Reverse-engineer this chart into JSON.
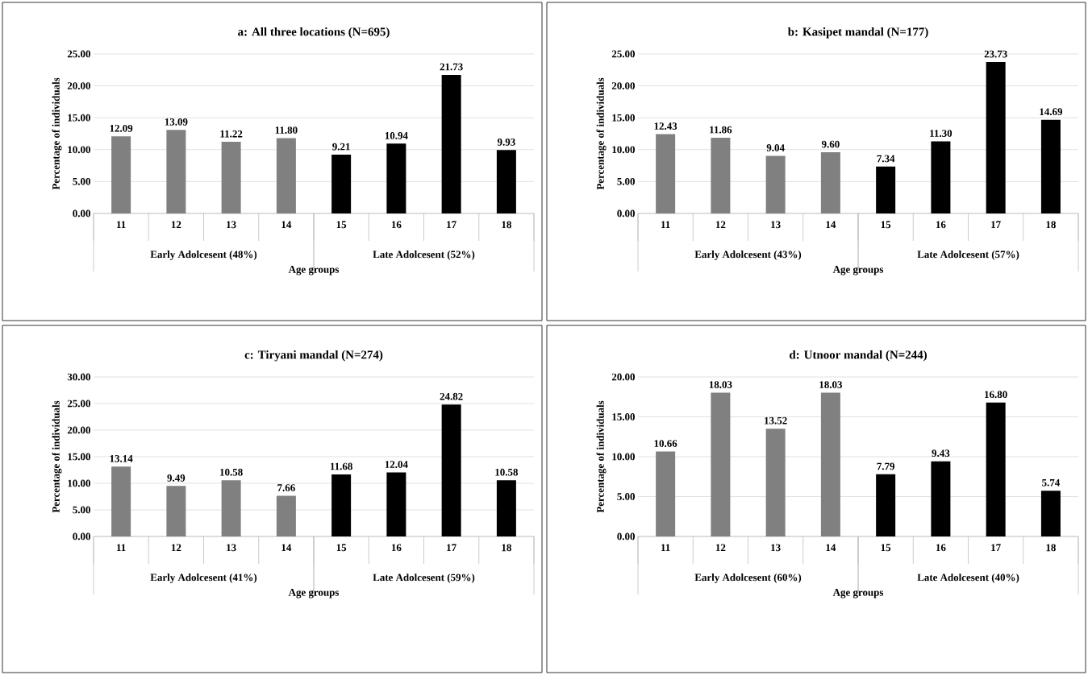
{
  "chart_data": [
    {
      "type": "bar",
      "title": "a: All three locations (N=695)",
      "xlabel": "Age groups",
      "ylabel": "Percentage of individuals",
      "categories": [
        "11",
        "12",
        "13",
        "14",
        "15",
        "16",
        "17",
        "18"
      ],
      "values": [
        12.09,
        13.09,
        11.22,
        11.8,
        9.21,
        10.94,
        21.73,
        9.93
      ],
      "colors": [
        "#808080",
        "#808080",
        "#808080",
        "#808080",
        "#000000",
        "#000000",
        "#000000",
        "#000000"
      ],
      "ylim": [
        0,
        25
      ],
      "yticks": [
        {
          "value": 0,
          "label": "0.00"
        },
        {
          "value": 5,
          "label": "5.00"
        },
        {
          "value": 10,
          "label": "10.00"
        },
        {
          "value": 15,
          "label": "15.00"
        },
        {
          "value": 20,
          "label": "20.00"
        },
        {
          "value": 25,
          "label": "25.00"
        }
      ],
      "value_labels": [
        "12.09",
        "13.09",
        "11.22",
        "11.80",
        "9.21",
        "10.94",
        "21.73",
        "9.93"
      ],
      "grid": "y",
      "data_labels": true,
      "annotations": [
        "Early Adolcesent (48%)",
        "Late Adolcesent (52%)"
      ]
    },
    {
      "type": "bar",
      "title": "b: Kasipet mandal (N=177)",
      "xlabel": "Age groups",
      "ylabel": "Percentage of individuals",
      "categories": [
        "11",
        "12",
        "13",
        "14",
        "15",
        "16",
        "17",
        "18"
      ],
      "values": [
        12.43,
        11.86,
        9.04,
        9.6,
        7.34,
        11.3,
        23.73,
        14.69
      ],
      "colors": [
        "#808080",
        "#808080",
        "#808080",
        "#808080",
        "#000000",
        "#000000",
        "#000000",
        "#000000"
      ],
      "ylim": [
        0,
        25
      ],
      "yticks": [
        {
          "value": 0,
          "label": "0.00"
        },
        {
          "value": 5,
          "label": "5.00"
        },
        {
          "value": 10,
          "label": "10.00"
        },
        {
          "value": 15,
          "label": "15.00"
        },
        {
          "value": 20,
          "label": "20.00"
        },
        {
          "value": 25,
          "label": "25.00"
        }
      ],
      "value_labels": [
        "12.43",
        "11.86",
        "9.04",
        "9.60",
        "7.34",
        "11.30",
        "23.73",
        "14.69"
      ],
      "grid": "y",
      "data_labels": true,
      "annotations": [
        "Early Adolcesent (43%)",
        "Late Adolcesent (57%)"
      ]
    },
    {
      "type": "bar",
      "title": "c: Tiryani mandal (N=274)",
      "xlabel": "Age groups",
      "ylabel": "Percentage of individuals",
      "categories": [
        "11",
        "12",
        "13",
        "14",
        "15",
        "16",
        "17",
        "18"
      ],
      "values": [
        13.14,
        9.49,
        10.58,
        7.66,
        11.68,
        12.04,
        24.82,
        10.58
      ],
      "colors": [
        "#808080",
        "#808080",
        "#808080",
        "#808080",
        "#000000",
        "#000000",
        "#000000",
        "#000000"
      ],
      "ylim": [
        0,
        30
      ],
      "yticks": [
        {
          "value": 0,
          "label": "0.00"
        },
        {
          "value": 5,
          "label": "5.00"
        },
        {
          "value": 10,
          "label": "10.00"
        },
        {
          "value": 15,
          "label": "15.00"
        },
        {
          "value": 20,
          "label": "20.00"
        },
        {
          "value": 25,
          "label": "25.00"
        },
        {
          "value": 30,
          "label": "30.00"
        }
      ],
      "value_labels": [
        "13.14",
        "9.49",
        "10.58",
        "7.66",
        "11.68",
        "12.04",
        "24.82",
        "10.58"
      ],
      "grid": "y",
      "data_labels": true,
      "annotations": [
        "Early Adolcesent (41%)",
        "Late Adolcesent (59%)"
      ]
    },
    {
      "type": "bar",
      "title": "d: Utnoor mandal (N=244)",
      "xlabel": "Age groups",
      "ylabel": "Percentage of individuals",
      "categories": [
        "11",
        "12",
        "13",
        "14",
        "15",
        "16",
        "17",
        "18"
      ],
      "values": [
        10.66,
        18.03,
        13.52,
        18.03,
        7.79,
        9.43,
        16.8,
        5.74
      ],
      "colors": [
        "#808080",
        "#808080",
        "#808080",
        "#808080",
        "#000000",
        "#000000",
        "#000000",
        "#000000"
      ],
      "ylim": [
        0,
        20
      ],
      "yticks": [
        {
          "value": 0,
          "label": "0.00"
        },
        {
          "value": 5,
          "label": "5.00"
        },
        {
          "value": 10,
          "label": "10.00"
        },
        {
          "value": 15,
          "label": "15.00"
        },
        {
          "value": 20,
          "label": "20.00"
        }
      ],
      "value_labels": [
        "10.66",
        "18.03",
        "13.52",
        "18.03",
        "7.79",
        "9.43",
        "16.80",
        "5.74"
      ],
      "grid": "y",
      "data_labels": true,
      "annotations": [
        "Early Adolcesent (60%)",
        "Late Adolcesent (40%)"
      ]
    }
  ]
}
